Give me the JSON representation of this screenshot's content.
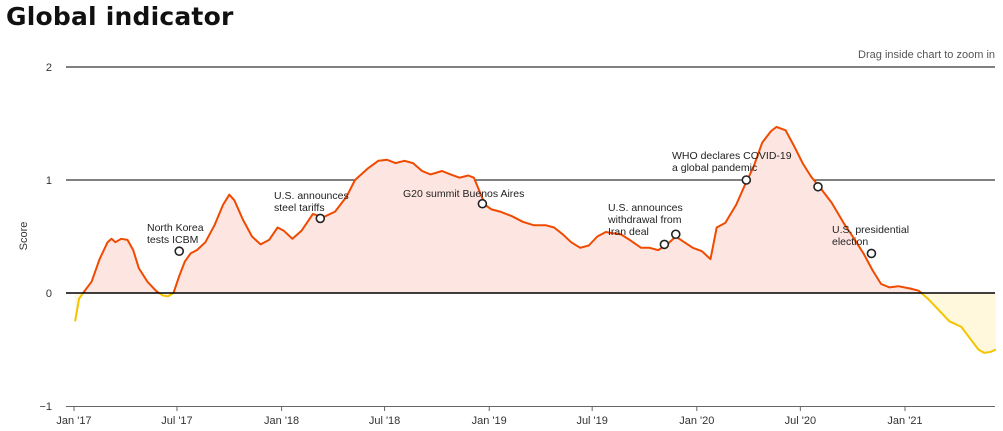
{
  "header": {
    "title": "Global indicator",
    "zoom_hint": "Drag inside chart to zoom in"
  },
  "chart_data": {
    "type": "area",
    "title": "Global indicator",
    "ylabel": "Score",
    "xlabel": "",
    "ylim": [
      -1,
      2
    ],
    "xlim": [
      "2017-01",
      "2021-12"
    ],
    "y_ticks": [
      "2",
      "1",
      "0",
      "−1"
    ],
    "x_ticks": [
      "Jan '17",
      "Jul '17",
      "Jan '18",
      "Jul '18",
      "Jan '19",
      "Jul '19",
      "Jan '20",
      "Jul '20",
      "Jan '21"
    ],
    "colors": {
      "positive_line": "#f04a00",
      "positive_fill": "#fde6e1",
      "negative_line": "#f5c400",
      "negative_fill": "#fff8dc",
      "baseline": "#000000",
      "gridline": "#000000"
    },
    "series": [
      {
        "points": [
          [
            "2017-01-03",
            -0.25
          ],
          [
            "2017-01-10",
            -0.05
          ],
          [
            "2017-01-20",
            0.02
          ],
          [
            "2017-02-01",
            0.1
          ],
          [
            "2017-02-15",
            0.3
          ],
          [
            "2017-03-01",
            0.45
          ],
          [
            "2017-03-08",
            0.48
          ],
          [
            "2017-03-15",
            0.45
          ],
          [
            "2017-03-25",
            0.48
          ],
          [
            "2017-04-05",
            0.47
          ],
          [
            "2017-04-15",
            0.38
          ],
          [
            "2017-04-25",
            0.22
          ],
          [
            "2017-05-10",
            0.1
          ],
          [
            "2017-05-25",
            0.02
          ],
          [
            "2017-06-05",
            -0.02
          ],
          [
            "2017-06-15",
            -0.03
          ],
          [
            "2017-06-25",
            0.0
          ],
          [
            "2017-07-05",
            0.15
          ],
          [
            "2017-07-15",
            0.28
          ],
          [
            "2017-07-25",
            0.35
          ],
          [
            "2017-08-05",
            0.38
          ],
          [
            "2017-08-20",
            0.45
          ],
          [
            "2017-09-05",
            0.6
          ],
          [
            "2017-09-20",
            0.78
          ],
          [
            "2017-10-01",
            0.87
          ],
          [
            "2017-10-10",
            0.82
          ],
          [
            "2017-10-25",
            0.65
          ],
          [
            "2017-11-10",
            0.5
          ],
          [
            "2017-11-25",
            0.43
          ],
          [
            "2017-12-10",
            0.47
          ],
          [
            "2017-12-25",
            0.58
          ],
          [
            "2018-01-05",
            0.55
          ],
          [
            "2018-01-20",
            0.48
          ],
          [
            "2018-02-05",
            0.55
          ],
          [
            "2018-02-25",
            0.7
          ],
          [
            "2018-03-15",
            0.67
          ],
          [
            "2018-04-05",
            0.72
          ],
          [
            "2018-04-25",
            0.85
          ],
          [
            "2018-05-10",
            1.0
          ],
          [
            "2018-06-01",
            1.1
          ],
          [
            "2018-06-20",
            1.17
          ],
          [
            "2018-07-05",
            1.18
          ],
          [
            "2018-07-20",
            1.15
          ],
          [
            "2018-08-05",
            1.17
          ],
          [
            "2018-08-20",
            1.15
          ],
          [
            "2018-09-05",
            1.08
          ],
          [
            "2018-09-20",
            1.05
          ],
          [
            "2018-10-10",
            1.08
          ],
          [
            "2018-10-25",
            1.05
          ],
          [
            "2018-11-10",
            1.02
          ],
          [
            "2018-11-25",
            1.04
          ],
          [
            "2018-12-05",
            1.02
          ],
          [
            "2018-12-15",
            0.9
          ],
          [
            "2018-12-25",
            0.78
          ],
          [
            "2019-01-05",
            0.74
          ],
          [
            "2019-01-20",
            0.72
          ],
          [
            "2019-02-10",
            0.68
          ],
          [
            "2019-03-01",
            0.63
          ],
          [
            "2019-03-20",
            0.6
          ],
          [
            "2019-04-10",
            0.6
          ],
          [
            "2019-04-25",
            0.58
          ],
          [
            "2019-05-10",
            0.52
          ],
          [
            "2019-05-25",
            0.45
          ],
          [
            "2019-06-10",
            0.4
          ],
          [
            "2019-06-25",
            0.42
          ],
          [
            "2019-07-10",
            0.5
          ],
          [
            "2019-07-25",
            0.54
          ],
          [
            "2019-08-05",
            0.53
          ],
          [
            "2019-08-20",
            0.52
          ],
          [
            "2019-09-05",
            0.47
          ],
          [
            "2019-09-25",
            0.4
          ],
          [
            "2019-10-10",
            0.4
          ],
          [
            "2019-10-25",
            0.38
          ],
          [
            "2019-11-10",
            0.43
          ],
          [
            "2019-11-25",
            0.5
          ],
          [
            "2019-12-10",
            0.45
          ],
          [
            "2019-12-25",
            0.4
          ],
          [
            "2020-01-10",
            0.37
          ],
          [
            "2020-01-25",
            0.3
          ],
          [
            "2020-02-05",
            0.58
          ],
          [
            "2020-02-20",
            0.62
          ],
          [
            "2020-03-10",
            0.78
          ],
          [
            "2020-03-25",
            0.95
          ],
          [
            "2020-04-10",
            1.12
          ],
          [
            "2020-04-25",
            1.33
          ],
          [
            "2020-05-10",
            1.43
          ],
          [
            "2020-05-20",
            1.47
          ],
          [
            "2020-06-05",
            1.44
          ],
          [
            "2020-06-20",
            1.3
          ],
          [
            "2020-07-05",
            1.15
          ],
          [
            "2020-07-20",
            1.03
          ],
          [
            "2020-08-05",
            0.93
          ],
          [
            "2020-08-25",
            0.8
          ],
          [
            "2020-09-15",
            0.62
          ],
          [
            "2020-10-01",
            0.5
          ],
          [
            "2020-10-20",
            0.35
          ],
          [
            "2020-11-05",
            0.2
          ],
          [
            "2020-11-20",
            0.08
          ],
          [
            "2020-12-05",
            0.05
          ],
          [
            "2020-12-20",
            0.06
          ],
          [
            "2021-01-10",
            0.04
          ],
          [
            "2021-01-25",
            0.02
          ],
          [
            "2021-02-10",
            -0.05
          ],
          [
            "2021-03-01",
            -0.15
          ],
          [
            "2021-03-20",
            -0.25
          ],
          [
            "2021-04-10",
            -0.3
          ],
          [
            "2021-04-25",
            -0.4
          ],
          [
            "2021-05-10",
            -0.5
          ],
          [
            "2021-05-20",
            -0.53
          ],
          [
            "2021-06-01",
            -0.52
          ],
          [
            "2021-06-10",
            -0.5
          ]
        ]
      }
    ],
    "annotations": [
      {
        "id": "north-korea",
        "date": "2017-07-05",
        "value": 0.37,
        "lines": [
          "North Korea",
          "tests ICBM"
        ]
      },
      {
        "id": "steel-tariffs",
        "date": "2018-03-10",
        "value": 0.66,
        "lines": [
          "U.S. announces",
          "steel tariffs"
        ]
      },
      {
        "id": "g20",
        "date": "2018-12-20",
        "value": 0.79,
        "lines": [
          "G20 summit Buenos Aires"
        ]
      },
      {
        "id": "iran-deal",
        "date": "2019-11-05",
        "value": 0.43,
        "lines": [
          "U.S. announces",
          "withdrawal from",
          "Iran deal"
        ]
      },
      {
        "id": "iran-deal-2",
        "date": "2019-11-25",
        "value": 0.52,
        "lines": []
      },
      {
        "id": "covid",
        "date": "2020-03-28",
        "value": 1.0,
        "lines": [
          "WHO declares COVID-19",
          "a global pandemic"
        ]
      },
      {
        "id": "election",
        "date": "2020-11-03",
        "value": 0.35,
        "lines": [
          "U.S. presidential",
          "election"
        ]
      },
      {
        "id": "covid-2",
        "date": "2020-08-01",
        "value": 0.94,
        "lines": []
      }
    ]
  }
}
